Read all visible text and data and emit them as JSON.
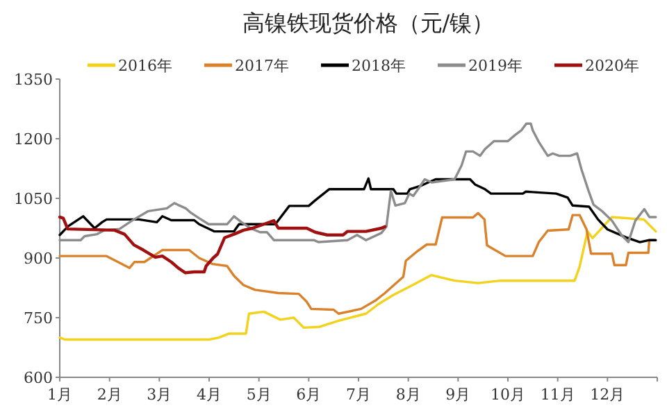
{
  "chart_data": {
    "type": "line",
    "title": "高镍铁现货价格（元/镍）",
    "xlim": [
      1,
      13
    ],
    "xticks": [
      {
        "value": 1,
        "label": "1月"
      },
      {
        "value": 2,
        "label": "2月"
      },
      {
        "value": 3,
        "label": "3月"
      },
      {
        "value": 4,
        "label": "4月"
      },
      {
        "value": 5,
        "label": "5月"
      },
      {
        "value": 6,
        "label": "6月"
      },
      {
        "value": 7,
        "label": "7月"
      },
      {
        "value": 8,
        "label": "8月"
      },
      {
        "value": 9,
        "label": "9月"
      },
      {
        "value": 10,
        "label": "10月"
      },
      {
        "value": 11,
        "label": "11月"
      },
      {
        "value": 12,
        "label": "12月"
      },
      {
        "value": 13,
        "label": null
      }
    ],
    "ylim": [
      600,
      1350
    ],
    "yticks": [
      600,
      750,
      900,
      1050,
      1200,
      1350
    ],
    "legend": "top",
    "grid": false,
    "marker": "none",
    "line_style": "solid",
    "series": [
      {
        "name": "2016年",
        "color": "#f2d21b",
        "x": [
          1,
          1.1,
          4.0,
          4.2,
          4.4,
          4.74,
          4.8,
          5.1,
          5.43,
          5.7,
          5.9,
          6.22,
          6.59,
          7.15,
          7.4,
          7.7,
          7.98,
          8.46,
          8.93,
          9.4,
          9.85,
          11.34,
          11.44,
          11.6,
          11.7,
          12.09,
          12.73,
          12.97
        ],
        "values": [
          700,
          695,
          695,
          700,
          710,
          710,
          760,
          765,
          745,
          750,
          725,
          727,
          742,
          760,
          784,
          807,
          825,
          857,
          843,
          837,
          843,
          843,
          878,
          967,
          950,
          1003,
          997,
          967
        ]
      },
      {
        "name": "2017年",
        "color": "#d9822b",
        "x": [
          1,
          1.94,
          2.4,
          2.5,
          2.7,
          3.06,
          3.6,
          3.8,
          4.07,
          4.36,
          4.5,
          4.69,
          4.92,
          5.39,
          5.8,
          5.96,
          6.05,
          6.5,
          6.6,
          7.05,
          7.34,
          7.53,
          7.9,
          7.95,
          8.18,
          8.37,
          8.55,
          8.68,
          9.3,
          9.4,
          9.53,
          9.58,
          9.95,
          10.5,
          10.62,
          10.8,
          11.22,
          11.3,
          11.44,
          11.58,
          11.67,
          12.09,
          12.14,
          12.37,
          12.42,
          12.82,
          12.84,
          12.95
        ],
        "values": [
          905,
          905,
          875,
          890,
          890,
          920,
          920,
          900,
          885,
          880,
          855,
          832,
          820,
          812,
          810,
          790,
          772,
          770,
          760,
          772,
          793,
          812,
          853,
          893,
          917,
          934,
          934,
          1002,
          1002,
          1013,
          997,
          932,
          905,
          905,
          940,
          969,
          972,
          1008,
          1008,
          972,
          911,
          911,
          882,
          882,
          913,
          913,
          945,
          945
        ]
      },
      {
        "name": "2018年",
        "color": "#000000",
        "x": [
          1,
          1.17,
          1.47,
          1.7,
          1.85,
          1.94,
          2.59,
          2.95,
          3.06,
          3.24,
          3.7,
          3.8,
          4.1,
          4.5,
          4.6,
          5.33,
          5.42,
          5.61,
          6.0,
          6.13,
          6.41,
          7.11,
          7.2,
          7.25,
          7.7,
          7.76,
          7.98,
          8.03,
          8.24,
          8.4,
          8.55,
          9.24,
          9.34,
          9.54,
          9.66,
          10.3,
          10.36,
          10.97,
          11.2,
          11.3,
          11.63,
          11.81,
          12.0,
          12.37,
          12.65,
          12.84,
          12.97
        ],
        "values": [
          958,
          980,
          1005,
          975,
          990,
          997,
          997,
          990,
          1005,
          995,
          995,
          985,
          967,
          967,
          985,
          985,
          1000,
          1031,
          1031,
          1045,
          1073,
          1073,
          1100,
          1073,
          1073,
          1062,
          1062,
          1073,
          1081,
          1090,
          1098,
          1098,
          1085,
          1073,
          1062,
          1062,
          1067,
          1062,
          1052,
          1032,
          1029,
          997,
          972,
          952,
          940,
          945,
          945
        ]
      },
      {
        "name": "2019年",
        "color": "#8c8c8c",
        "x": [
          1,
          1.42,
          1.5,
          1.75,
          1.9,
          2.2,
          2.45,
          2.78,
          3.15,
          3.3,
          3.53,
          3.62,
          3.8,
          3.99,
          4.36,
          4.5,
          4.65,
          4.83,
          5.02,
          5.16,
          5.3,
          6.1,
          6.2,
          6.78,
          6.97,
          7.15,
          7.46,
          7.56,
          7.65,
          7.74,
          7.93,
          8.02,
          8.1,
          8.24,
          8.33,
          8.47,
          8.7,
          8.93,
          9.07,
          9.16,
          9.3,
          9.44,
          9.54,
          9.72,
          10.0,
          10.14,
          10.27,
          10.37,
          10.46,
          10.5,
          10.62,
          10.8,
          10.9,
          11.03,
          11.25,
          11.39,
          11.48,
          11.62,
          11.72,
          11.9,
          12.09,
          12.28,
          12.42,
          12.56,
          12.74,
          12.84,
          12.97
        ],
        "values": [
          945,
          945,
          955,
          960,
          970,
          973,
          994,
          1018,
          1025,
          1038,
          1025,
          1015,
          1000,
          985,
          985,
          1005,
          990,
          975,
          965,
          965,
          945,
          945,
          940,
          945,
          958,
          945,
          963,
          979,
          1069,
          1032,
          1038,
          1062,
          1056,
          1081,
          1098,
          1090,
          1094,
          1098,
          1133,
          1168,
          1168,
          1157,
          1174,
          1194,
          1194,
          1209,
          1221,
          1238,
          1238,
          1221,
          1192,
          1157,
          1163,
          1157,
          1157,
          1163,
          1122,
          1069,
          1034,
          1017,
          994,
          958,
          940,
          994,
          1023,
          1003,
          1003
        ]
      },
      {
        "name": "2020年",
        "color": "#a01010",
        "x": [
          1,
          1.07,
          1.16,
          2.1,
          2.3,
          2.49,
          2.68,
          2.92,
          3.06,
          3.24,
          3.38,
          3.52,
          3.7,
          3.9,
          3.94,
          4.08,
          4.17,
          4.31,
          4.5,
          4.69,
          4.87,
          5.1,
          5.3,
          5.39,
          5.96,
          6.13,
          6.37,
          6.69,
          6.78,
          7.15,
          7.46,
          7.53
        ],
        "values": [
          1003,
          1000,
          973,
          970,
          960,
          933,
          920,
          902,
          905,
          890,
          875,
          863,
          865,
          865,
          880,
          900,
          910,
          951,
          960,
          970,
          975,
          985,
          994,
          975,
          975,
          965,
          958,
          958,
          967,
          967,
          975,
          979
        ]
      }
    ]
  }
}
